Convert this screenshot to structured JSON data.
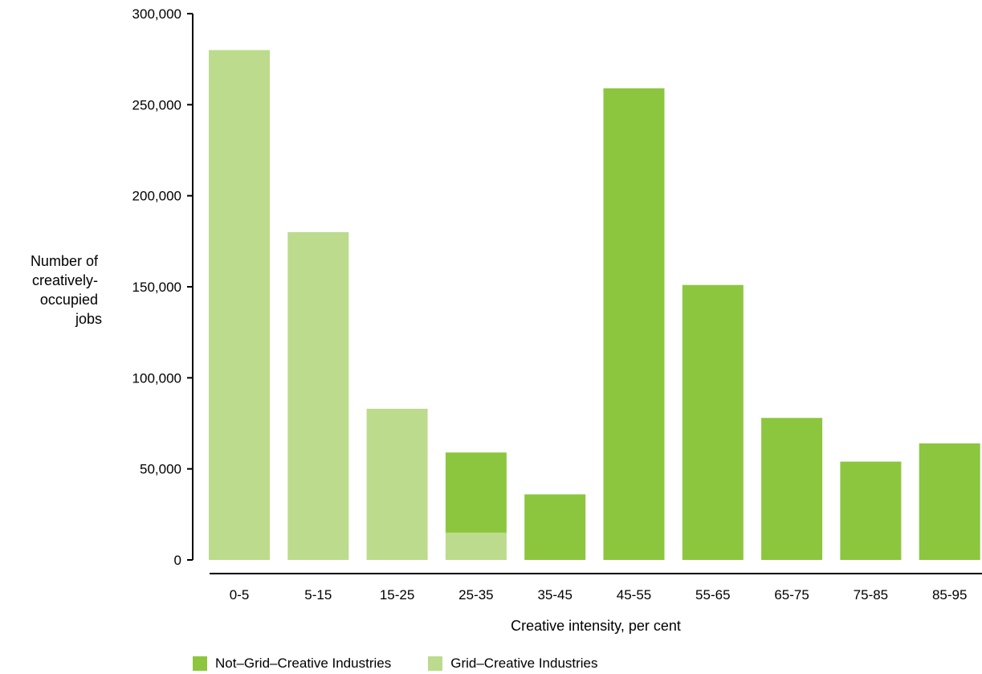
{
  "chart_data": {
    "type": "bar",
    "stacked": true,
    "categories": [
      "0-5",
      "5-15",
      "15-25",
      "25-35",
      "35-45",
      "45-55",
      "55-65",
      "65-75",
      "75-85",
      "85-95"
    ],
    "series": [
      {
        "name": "Grid–Creative Industries",
        "color": "#bcdb8c",
        "values": [
          280000,
          180000,
          83000,
          15000,
          0,
          0,
          0,
          0,
          0,
          0
        ]
      },
      {
        "name": "Not–Grid–Creative Industries",
        "color": "#8cc63f",
        "values": [
          0,
          0,
          0,
          44000,
          36000,
          259000,
          151000,
          78000,
          54000,
          64000
        ]
      }
    ],
    "xlabel": "Creative intensity, per cent",
    "ylabel": [
      "Number of",
      "creatively-",
      "occupied",
      "jobs"
    ],
    "ylim": [
      0,
      300000
    ],
    "yticks": [
      0,
      50000,
      100000,
      150000,
      200000,
      250000,
      300000
    ],
    "ytick_labels": [
      "0",
      "50,000",
      "100,000",
      "150,000",
      "200,000",
      "250,000",
      "300,000"
    ],
    "grid": false,
    "legend_position": "bottom-left"
  },
  "legend": {
    "items": [
      {
        "label": "Not–Grid–Creative Industries",
        "color": "#8cc63f"
      },
      {
        "label": "Grid–Creative Industries",
        "color": "#bcdb8c"
      }
    ]
  }
}
